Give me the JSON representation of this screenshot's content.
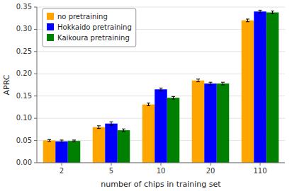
{
  "chart_data": {
    "type": "bar",
    "xlabel": "number of chips in training set",
    "ylabel": "APRC",
    "categories": [
      2,
      5,
      10,
      20,
      110
    ],
    "series": [
      {
        "name": "no pretraining",
        "color": "#FFA500",
        "values": [
          0.05,
          0.08,
          0.131,
          0.185,
          0.32
        ],
        "errors": [
          0.002,
          0.003,
          0.003,
          0.003,
          0.003
        ]
      },
      {
        "name": "Hokkaido pretraining",
        "color": "#0000FF",
        "values": [
          0.048,
          0.088,
          0.165,
          0.178,
          0.34
        ],
        "errors": [
          0.003,
          0.004,
          0.003,
          0.003,
          0.003
        ]
      },
      {
        "name": "Kaikoura pretraining",
        "color": "#008000",
        "values": [
          0.049,
          0.073,
          0.146,
          0.178,
          0.338
        ],
        "errors": [
          0.002,
          0.003,
          0.003,
          0.003,
          0.003
        ]
      }
    ],
    "ylim": [
      0,
      0.35
    ],
    "yticks": [
      {
        "value": 0,
        "label": "0.00"
      },
      {
        "value": 0.05,
        "label": "0.05"
      },
      {
        "value": 0.1,
        "label": "0.10"
      },
      {
        "value": 0.15,
        "label": "0.15"
      },
      {
        "value": 0.2,
        "label": "0.20"
      },
      {
        "value": 0.25,
        "label": "0.25"
      },
      {
        "value": 0.3,
        "label": "0.30"
      },
      {
        "value": 0.35,
        "label": "0.35"
      }
    ],
    "legend": "upper left",
    "grid": true
  }
}
